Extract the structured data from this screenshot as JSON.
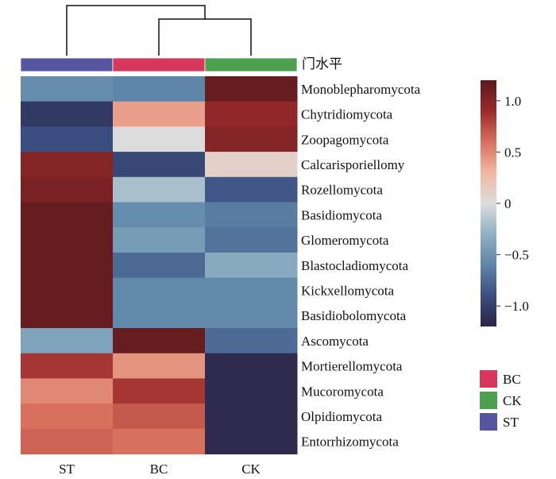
{
  "chart_data": {
    "type": "heatmap",
    "annotation_label": "门水平",
    "columns": [
      "ST",
      "BC",
      "CK"
    ],
    "rows": [
      "Monoblepharomycota",
      "Chytridiomycota",
      "Zoopagomycota",
      "Calcarisporiellomy",
      "Rozellomycota",
      "Basidiomycota",
      "Glomeromycota",
      "Blastocladiomycota",
      "Kickxellomycota",
      "Basidiobolomycota",
      "Ascomycota",
      "Mortierellomycota",
      "Mucoromycota",
      "Olpidiomycota",
      "Entorrhizomycota"
    ],
    "values": [
      [
        -0.55,
        -0.6,
        1.15
      ],
      [
        -1.05,
        0.4,
        0.95
      ],
      [
        -0.9,
        0.0,
        1.0
      ],
      [
        1.0,
        -0.95,
        0.1
      ],
      [
        1.05,
        -0.2,
        -0.85
      ],
      [
        1.15,
        -0.55,
        -0.65
      ],
      [
        1.15,
        -0.45,
        -0.7
      ],
      [
        1.15,
        -0.75,
        -0.35
      ],
      [
        1.15,
        -0.58,
        -0.58
      ],
      [
        1.15,
        -0.58,
        -0.58
      ],
      [
        -0.4,
        1.15,
        -0.75
      ],
      [
        0.85,
        0.45,
        -1.15
      ],
      [
        0.5,
        0.85,
        -1.15
      ],
      [
        0.6,
        0.7,
        -1.15
      ],
      [
        0.65,
        0.6,
        -1.15
      ]
    ],
    "dendrogram": "((BC,CK),ST)",
    "colorbar": {
      "range": [
        -1.2,
        1.2
      ],
      "ticks": [
        1.0,
        0.5,
        0,
        -0.5,
        -1.0
      ],
      "tick_labels": [
        "1.0",
        "0.5",
        "0",
        "−0.5",
        "−1.0"
      ],
      "colormap": [
        "#2b2444",
        "#3a4e80",
        "#5f86a8",
        "#8fb1c4",
        "#dcdcdc",
        "#f2b8a2",
        "#d8705e",
        "#9c2a2a",
        "#5a1a1e"
      ]
    },
    "group_colors": {
      "ST": "#5656a0",
      "BC": "#d5385a",
      "CK": "#4da04d"
    },
    "legend": [
      {
        "label": "BC",
        "color": "#d5385a"
      },
      {
        "label": "CK",
        "color": "#4da04d"
      },
      {
        "label": "ST",
        "color": "#5656a0"
      }
    ],
    "legend_position": "right"
  }
}
